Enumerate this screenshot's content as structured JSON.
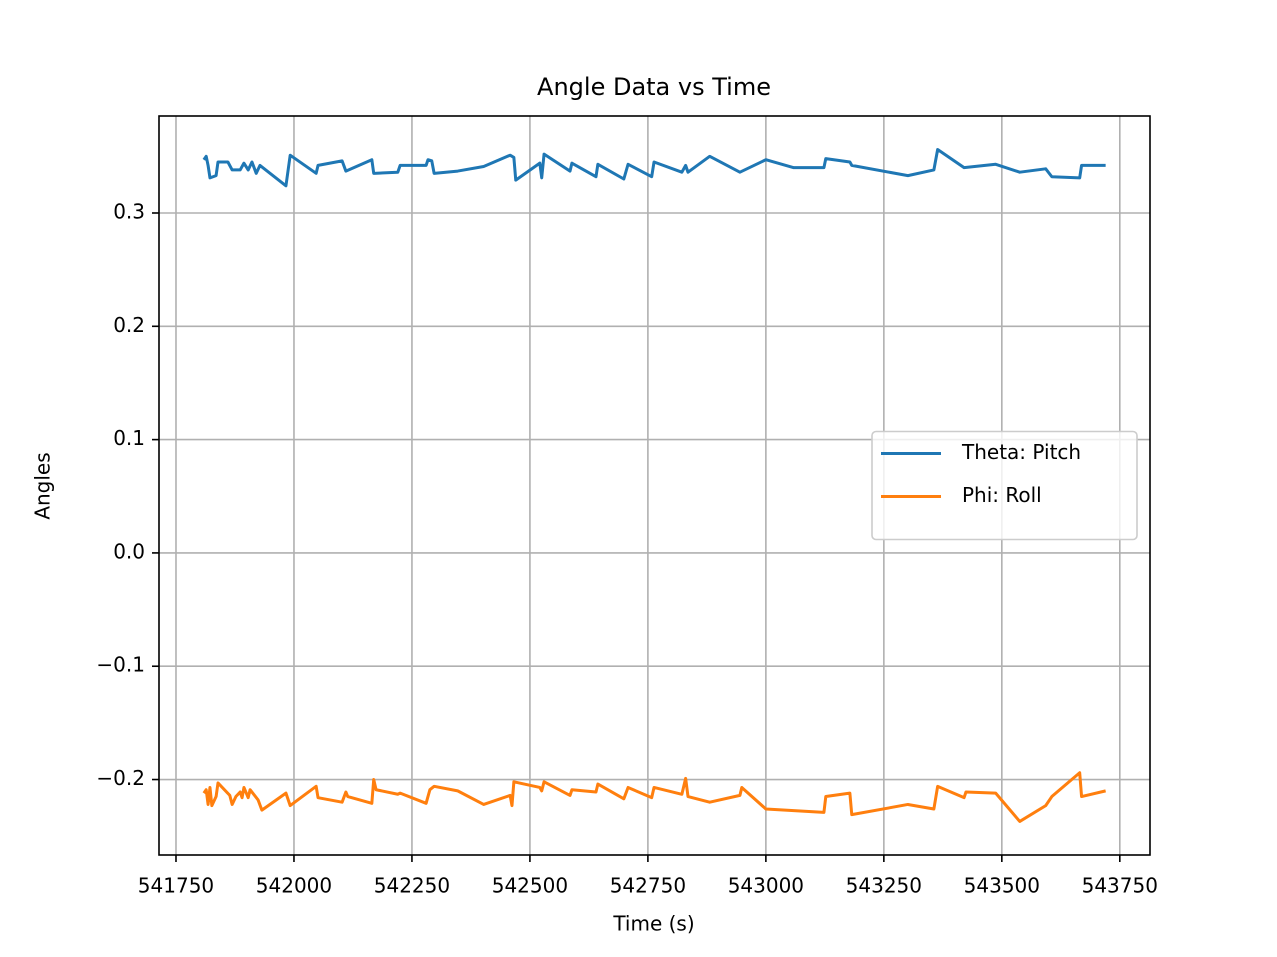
{
  "chart_data": {
    "type": "line",
    "title": "Angle Data vs Time",
    "xlabel": "Time (s)",
    "ylabel": "Angles",
    "xlim": [
      541714,
      543814
    ],
    "ylim": [
      -0.2666,
      0.3856
    ],
    "xticks": [
      541750,
      542000,
      542250,
      542500,
      542750,
      543000,
      543250,
      543500,
      543750
    ],
    "yticks": [
      {
        "value": -0.2,
        "label": "−0.2"
      },
      {
        "value": -0.1,
        "label": "−0.1"
      },
      {
        "value": 0,
        "label": "0.0"
      },
      0.1,
      0.2,
      0.3
    ],
    "grid": true,
    "legend": "center right",
    "series": [
      {
        "name": "Theta: Pitch",
        "color": "#1f77b4",
        "x": [
          541809,
          541814,
          541818,
          541822,
          541835,
          541839,
          541860,
          541869,
          541886,
          541894,
          541903,
          541911,
          541920,
          541928,
          541983,
          541992,
          542047,
          542051,
          542102,
          542110,
          542165,
          542169,
          542220,
          542225,
          542280,
          542284,
          542292,
          542297,
          542347,
          542402,
          542458,
          542466,
          542470,
          542521,
          542525,
          542530,
          542585,
          542589,
          542640,
          542644,
          542699,
          542708,
          542758,
          542763,
          542822,
          542830,
          542835,
          542881,
          542945,
          543000,
          543059,
          543123,
          543127,
          543178,
          543182,
          543301,
          543356,
          543364,
          543420,
          543487,
          543538,
          543593,
          543606,
          543665,
          543669,
          543720
        ],
        "values": [
          0.347,
          0.35,
          0.342,
          0.331,
          0.333,
          0.345,
          0.345,
          0.338,
          0.338,
          0.344,
          0.338,
          0.345,
          0.335,
          0.342,
          0.324,
          0.351,
          0.335,
          0.342,
          0.346,
          0.337,
          0.347,
          0.335,
          0.336,
          0.342,
          0.342,
          0.347,
          0.346,
          0.335,
          0.337,
          0.341,
          0.351,
          0.349,
          0.329,
          0.344,
          0.331,
          0.352,
          0.337,
          0.344,
          0.332,
          0.343,
          0.33,
          0.343,
          0.332,
          0.345,
          0.336,
          0.342,
          0.336,
          0.35,
          0.336,
          0.347,
          0.34,
          0.34,
          0.348,
          0.345,
          0.342,
          0.333,
          0.338,
          0.356,
          0.34,
          0.343,
          0.336,
          0.339,
          0.332,
          0.331,
          0.342,
          0.342
        ]
      },
      {
        "name": "Phi: Roll",
        "color": "#ff7f0e",
        "x": [
          541809,
          541814,
          541818,
          541822,
          541826,
          541835,
          541839,
          541864,
          541869,
          541877,
          541886,
          541890,
          541894,
          541903,
          541907,
          541924,
          541932,
          541983,
          541992,
          542047,
          542051,
          542102,
          542110,
          542114,
          542165,
          542169,
          542174,
          542220,
          542225,
          542280,
          542288,
          542297,
          542347,
          542402,
          542458,
          542462,
          542466,
          542521,
          542525,
          542530,
          542585,
          542589,
          542640,
          542644,
          542699,
          542708,
          542758,
          542763,
          542822,
          542830,
          542835,
          542881,
          542945,
          542949,
          543000,
          543123,
          543127,
          543178,
          543182,
          543301,
          543356,
          543364,
          543420,
          543424,
          543487,
          543538,
          543593,
          543606,
          543665,
          543669,
          543720
        ],
        "values": [
          -0.212,
          -0.209,
          -0.222,
          -0.207,
          -0.223,
          -0.215,
          -0.203,
          -0.214,
          -0.222,
          -0.215,
          -0.211,
          -0.216,
          -0.207,
          -0.216,
          -0.209,
          -0.218,
          -0.227,
          -0.212,
          -0.223,
          -0.206,
          -0.216,
          -0.22,
          -0.211,
          -0.215,
          -0.221,
          -0.2,
          -0.209,
          -0.213,
          -0.212,
          -0.221,
          -0.209,
          -0.206,
          -0.21,
          -0.222,
          -0.214,
          -0.223,
          -0.202,
          -0.207,
          -0.21,
          -0.202,
          -0.214,
          -0.209,
          -0.211,
          -0.204,
          -0.217,
          -0.207,
          -0.216,
          -0.207,
          -0.213,
          -0.199,
          -0.215,
          -0.22,
          -0.214,
          -0.207,
          -0.226,
          -0.229,
          -0.215,
          -0.212,
          -0.231,
          -0.222,
          -0.226,
          -0.206,
          -0.216,
          -0.211,
          -0.212,
          -0.237,
          -0.223,
          -0.215,
          -0.194,
          -0.215,
          -0.21
        ]
      }
    ]
  }
}
